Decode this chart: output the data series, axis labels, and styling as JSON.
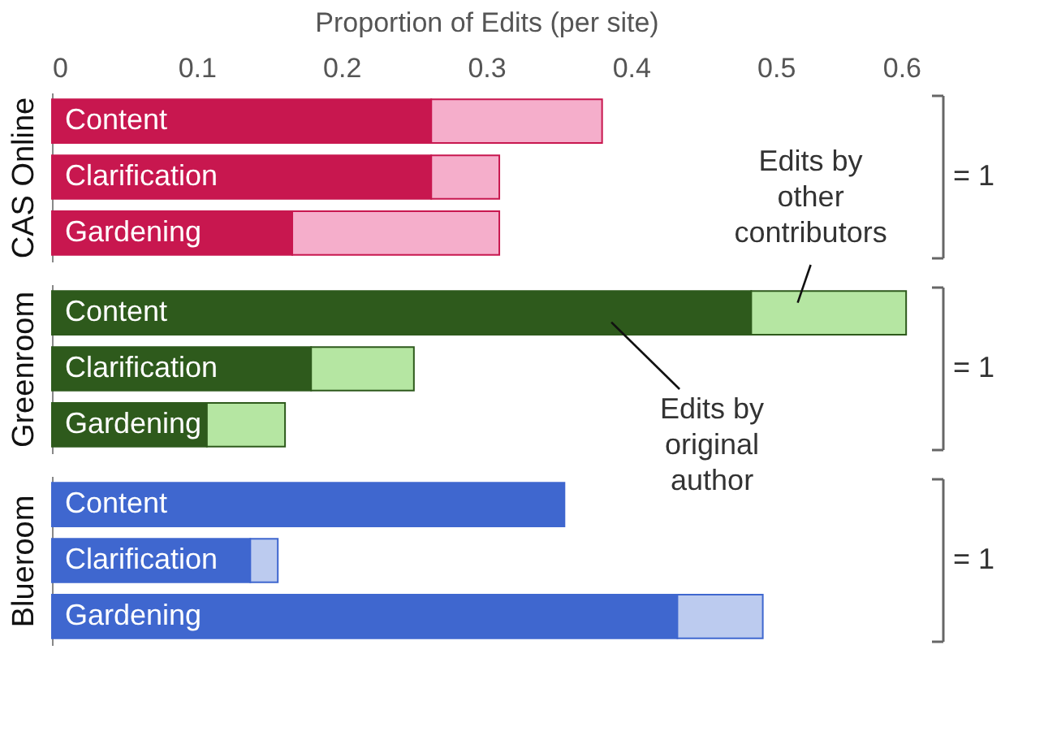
{
  "chart_data": [
    {
      "type": "bar",
      "orientation": "horizontal",
      "stacked": true,
      "xlabel": "Proportion of Edits (per site)",
      "ylabel": "CAS Online",
      "categories": [
        "Content",
        "Clarification",
        "Gardening"
      ],
      "xlim": [
        0,
        0.6
      ],
      "xticks": [
        0,
        0.1,
        0.2,
        0.3,
        0.4,
        0.5,
        0.6
      ],
      "tick_labels": "x",
      "annotations": [
        "= 1"
      ],
      "series": [
        {
          "color": "#c8174f",
          "values": [
            0.262,
            0.262,
            0.166
          ]
        },
        {
          "color": "#f5aecb",
          "values": [
            0.118,
            0.047,
            0.143
          ]
        }
      ]
    },
    {
      "type": "bar",
      "orientation": "horizontal",
      "stacked": true,
      "ylabel": "Greenroom",
      "categories": [
        "Content",
        "Clarification",
        "Gardening"
      ],
      "xlim": [
        0,
        0.6
      ],
      "xticks": [
        0,
        0.1,
        0.2,
        0.3,
        0.4,
        0.5,
        0.6
      ],
      "tick_labels": false,
      "annotations": [
        "= 1"
      ],
      "series": [
        {
          "name": "Edits by original author",
          "color": "#2e5a1c",
          "values": [
            0.483,
            0.179,
            0.107
          ]
        },
        {
          "name": "Edits by other contributors",
          "color": "#b5e6a2",
          "values": [
            0.107,
            0.071,
            0.054
          ]
        }
      ]
    },
    {
      "type": "bar",
      "orientation": "horizontal",
      "stacked": true,
      "ylabel": "Blueroom",
      "categories": [
        "Content",
        "Clarification",
        "Gardening"
      ],
      "xlim": [
        0,
        0.6
      ],
      "xticks": [
        0,
        0.1,
        0.2,
        0.3,
        0.4,
        0.5,
        0.6
      ],
      "tick_labels": false,
      "annotations": [
        "= 1"
      ],
      "series": [
        {
          "color": "#3f67cf",
          "values": [
            0.354,
            0.137,
            0.432
          ]
        },
        {
          "color": "#bccbef",
          "values": [
            null,
            0.019,
            0.059
          ]
        }
      ]
    }
  ]
}
